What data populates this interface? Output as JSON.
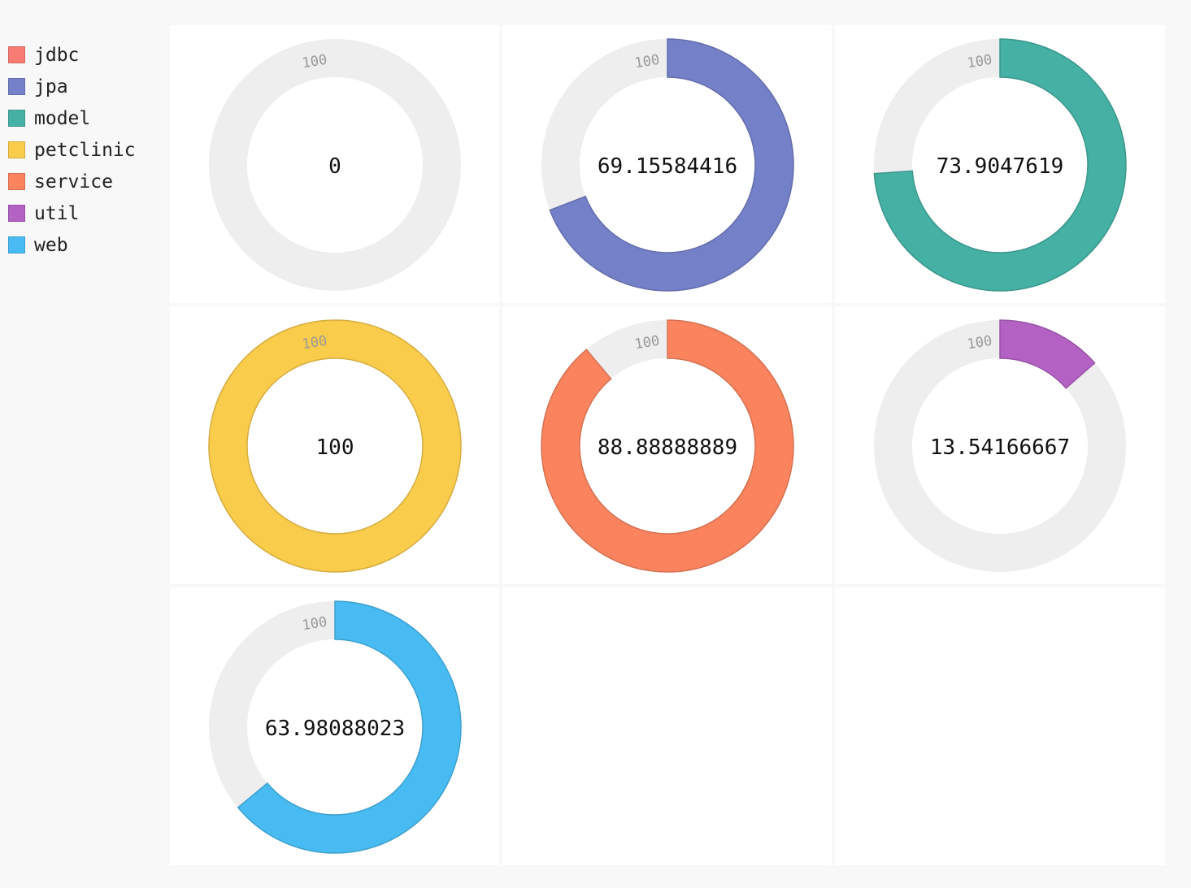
{
  "chart_data": {
    "type": "gauge",
    "max": 100,
    "track_color": "#eeeeee",
    "series": [
      {
        "name": "jdbc",
        "value": 0,
        "value_label": "0",
        "max_label": "100",
        "color": "#f77b72"
      },
      {
        "name": "jpa",
        "value": 69.15584416,
        "value_label": "69.15584416",
        "max_label": "100",
        "color": "#7480c8"
      },
      {
        "name": "model",
        "value": 73.9047619,
        "value_label": "73.9047619",
        "max_label": "100",
        "color": "#45b0a4"
      },
      {
        "name": "petclinic",
        "value": 100,
        "value_label": "100",
        "max_label": "100",
        "color": "#facc4b"
      },
      {
        "name": "service",
        "value": 88.88888889,
        "value_label": "88.88888889",
        "max_label": "100",
        "color": "#fb845f"
      },
      {
        "name": "util",
        "value": 13.54166667,
        "value_label": "13.54166667",
        "max_label": "100",
        "color": "#b362c3"
      },
      {
        "name": "web",
        "value": 63.98088023,
        "value_label": "63.98088023",
        "max_label": "100",
        "color": "#48bcf2"
      }
    ]
  }
}
